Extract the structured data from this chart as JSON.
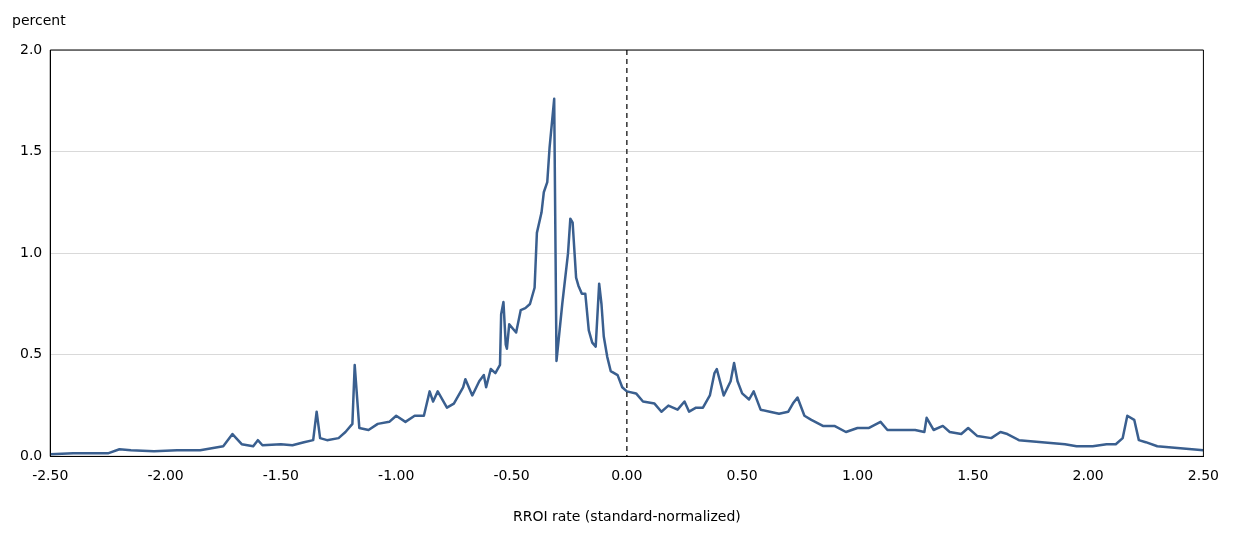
{
  "chart_data": {
    "type": "line",
    "xlabel": "RROI rate (standard-normalized)",
    "ylabel": "percent",
    "xlim": [
      -2.5,
      2.5
    ],
    "xticks": [
      {
        "value": -2.5,
        "label": "-2.50"
      },
      {
        "value": -2,
        "label": "-2.00"
      },
      {
        "value": -1.5,
        "label": "-1.50"
      },
      {
        "value": -1,
        "label": "-1.00"
      },
      {
        "value": -0.5,
        "label": "-0.50"
      },
      {
        "value": 0,
        "label": "0.00"
      },
      {
        "value": 0.5,
        "label": "0.50"
      },
      {
        "value": 1,
        "label": "1.00"
      },
      {
        "value": 1.5,
        "label": "1.50"
      },
      {
        "value": 2,
        "label": "2.00"
      },
      {
        "value": 2.5,
        "label": "2.50"
      }
    ],
    "ylim": [
      0,
      2
    ],
    "yticks": [
      {
        "value": 0,
        "label": "0.0"
      },
      {
        "value": 0.5,
        "label": "0.5"
      },
      {
        "value": 1,
        "label": "1.0"
      },
      {
        "value": 1.5,
        "label": "1.5"
      },
      {
        "value": 2,
        "label": "2.0"
      }
    ],
    "grid": "y",
    "legend": false,
    "marker": "none",
    "line_style": "solid",
    "ref_lines": [
      {
        "axis": "x",
        "value": 0,
        "label": null,
        "color": "#333333",
        "line_style": "dashed"
      }
    ],
    "series": [
      {
        "color": "#3a5f8f",
        "x": [
          -2.5,
          -2.4,
          -2.3,
          -2.25,
          -2.2,
          -2.15,
          -2.05,
          -1.95,
          -1.85,
          -1.8,
          -1.75,
          -1.71,
          -1.67,
          -1.62,
          -1.6,
          -1.58,
          -1.5,
          -1.45,
          -1.4,
          -1.36,
          -1.345,
          -1.33,
          -1.3,
          -1.25,
          -1.22,
          -1.19,
          -1.18,
          -1.16,
          -1.12,
          -1.08,
          -1.03,
          -1.0,
          -0.96,
          -0.92,
          -0.88,
          -0.855,
          -0.84,
          -0.82,
          -0.78,
          -0.75,
          -0.71,
          -0.7,
          -0.67,
          -0.64,
          -0.62,
          -0.61,
          -0.59,
          -0.57,
          -0.55,
          -0.545,
          -0.535,
          -0.525,
          -0.52,
          -0.51,
          -0.48,
          -0.46,
          -0.44,
          -0.42,
          -0.4,
          -0.39,
          -0.37,
          -0.36,
          -0.345,
          -0.335,
          -0.315,
          -0.305,
          -0.28,
          -0.255,
          -0.245,
          -0.235,
          -0.22,
          -0.21,
          -0.195,
          -0.18,
          -0.165,
          -0.15,
          -0.135,
          -0.12,
          -0.11,
          -0.1,
          -0.085,
          -0.07,
          -0.04,
          -0.02,
          0.0,
          0.04,
          0.07,
          0.12,
          0.15,
          0.18,
          0.22,
          0.25,
          0.27,
          0.3,
          0.33,
          0.36,
          0.38,
          0.39,
          0.42,
          0.45,
          0.465,
          0.48,
          0.5,
          0.53,
          0.55,
          0.58,
          0.62,
          0.66,
          0.7,
          0.72,
          0.74,
          0.77,
          0.8,
          0.85,
          0.9,
          0.95,
          1.0,
          1.05,
          1.1,
          1.13,
          1.2,
          1.25,
          1.29,
          1.3,
          1.33,
          1.37,
          1.4,
          1.45,
          1.48,
          1.52,
          1.58,
          1.62,
          1.65,
          1.7,
          1.8,
          1.9,
          1.95,
          2.02,
          2.08,
          2.12,
          2.15,
          2.17,
          2.2,
          2.22,
          2.25,
          2.3,
          2.4,
          2.5
        ],
        "values": [
          0.01,
          0.015,
          0.015,
          0.015,
          0.035,
          0.03,
          0.025,
          0.03,
          0.03,
          0.04,
          0.05,
          0.11,
          0.06,
          0.05,
          0.08,
          0.055,
          0.06,
          0.055,
          0.07,
          0.08,
          0.22,
          0.09,
          0.08,
          0.09,
          0.12,
          0.16,
          0.45,
          0.14,
          0.13,
          0.16,
          0.17,
          0.2,
          0.17,
          0.2,
          0.2,
          0.32,
          0.27,
          0.32,
          0.24,
          0.26,
          0.34,
          0.38,
          0.3,
          0.37,
          0.4,
          0.34,
          0.43,
          0.41,
          0.45,
          0.7,
          0.76,
          0.55,
          0.53,
          0.65,
          0.61,
          0.72,
          0.73,
          0.75,
          0.83,
          1.1,
          1.2,
          1.3,
          1.35,
          1.52,
          1.76,
          0.47,
          0.75,
          1.0,
          1.17,
          1.15,
          0.88,
          0.84,
          0.8,
          0.8,
          0.62,
          0.56,
          0.54,
          0.85,
          0.75,
          0.59,
          0.49,
          0.42,
          0.4,
          0.34,
          0.32,
          0.31,
          0.27,
          0.26,
          0.22,
          0.25,
          0.23,
          0.27,
          0.22,
          0.24,
          0.24,
          0.3,
          0.41,
          0.43,
          0.3,
          0.37,
          0.46,
          0.37,
          0.31,
          0.28,
          0.32,
          0.23,
          0.22,
          0.21,
          0.22,
          0.26,
          0.29,
          0.2,
          0.18,
          0.15,
          0.15,
          0.12,
          0.14,
          0.14,
          0.17,
          0.13,
          0.13,
          0.13,
          0.12,
          0.19,
          0.13,
          0.15,
          0.12,
          0.11,
          0.14,
          0.1,
          0.09,
          0.12,
          0.11,
          0.08,
          0.07,
          0.06,
          0.05,
          0.05,
          0.06,
          0.06,
          0.09,
          0.2,
          0.18,
          0.08,
          0.07,
          0.05,
          0.04,
          0.03
        ]
      }
    ]
  }
}
